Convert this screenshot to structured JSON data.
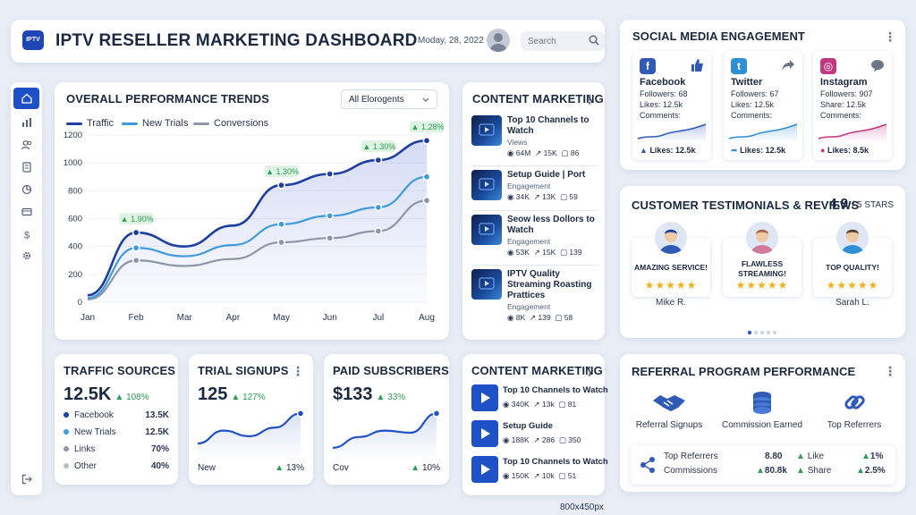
{
  "header": {
    "logo_text": "IPTV",
    "title": "IPTV RESELLER MARKETING DASHBOARD",
    "date": "Moday, 28, 2022",
    "search_placeholder": "Search"
  },
  "sidebar": {
    "items": [
      "home-icon",
      "bar-chart-icon",
      "users-icon",
      "document-icon",
      "pie-chart-icon",
      "card-icon",
      "dollar-icon",
      "gear-icon"
    ],
    "bottom": "logout-icon"
  },
  "performance": {
    "title": "OVERALL PERFORMANCE TRENDS",
    "filter": "All Elorogents",
    "legend": [
      "Traffic",
      "New Trials",
      "Conversions"
    ]
  },
  "chart_data": {
    "type": "line",
    "x": [
      "Jan",
      "Feb",
      "Mar",
      "Apr",
      "May",
      "Jun",
      "Jul",
      "Aug"
    ],
    "yticks": [
      0,
      200,
      400,
      600,
      800,
      1000,
      1200
    ],
    "ylim": [
      0,
      1250
    ],
    "colors": [
      "#1e3f9e",
      "#3f9bdc",
      "#8d97a8"
    ],
    "series": [
      {
        "name": "Traffic",
        "values": [
          50,
          500,
          400,
          550,
          840,
          920,
          1020,
          1160
        ]
      },
      {
        "name": "New Trials",
        "values": [
          30,
          390,
          330,
          410,
          560,
          620,
          680,
          900
        ]
      },
      {
        "name": "Conversions",
        "values": [
          20,
          300,
          260,
          310,
          430,
          460,
          510,
          730
        ]
      }
    ],
    "annotations": [
      {
        "x": "Feb",
        "y": 500,
        "text": "1.90%"
      },
      {
        "x": "May",
        "y": 840,
        "text": "1.30%"
      },
      {
        "x": "Jul",
        "y": 1020,
        "text": "1.30%"
      },
      {
        "x": "Aug",
        "y": 1160,
        "text": "1.28%"
      }
    ]
  },
  "content_top": {
    "title": "CONTENT MARKETING",
    "items": [
      {
        "title": "Top 10 Channels to Watch",
        "sub": "Views",
        "views": "64M",
        "shares": "15K",
        "comments": "86"
      },
      {
        "title": "Setup Guide | Port",
        "sub": "Engagement",
        "views": "34K",
        "shares": "13K",
        "comments": "59"
      },
      {
        "title": "Seow less Dollors to Watch",
        "sub": "Engagement",
        "views": "53K",
        "shares": "15K",
        "comments": "139"
      },
      {
        "title": "IPTV Quality Streaming Roasting Prattices",
        "sub": "Engagement",
        "views": "8K",
        "shares": "139",
        "comments": "58"
      }
    ]
  },
  "social": {
    "title": "SOCIAL MEDIA ENGAGEMENT",
    "cards": [
      {
        "name": "Facebook",
        "l1": "Followers: 68",
        "l2": "Likes: 12.5k",
        "l3": "Comments:",
        "footer": "Likes: 12.5k",
        "color": "#2f5bb7",
        "logo": "f",
        "action": "thumbs-up-icon"
      },
      {
        "name": "Twitter",
        "l1": "Followers: 67",
        "l2": "Likes: 12.5k",
        "l3": "Comments:",
        "footer": "Likes: 12.5k",
        "color": "#2e8fd6",
        "logo": "t",
        "action": "share-icon"
      },
      {
        "name": "Instagram",
        "l1": "Followers: 907",
        "l2": "Share: 12.5k",
        "l3": "Comments:",
        "footer": "Likes: 8.5k",
        "color": "#c2377f",
        "logo": "◎",
        "action": "comment-icon"
      }
    ]
  },
  "testimonials": {
    "title": "CUSTOMER TESTIMONIALS & REVIEWS",
    "rating": "4.9",
    "rating_suffix": "/ 5 STARS",
    "cards": [
      {
        "quote": "AMAZING SERVICE!",
        "name": "Mike R.",
        "stars": "★★★★★"
      },
      {
        "quote": "FLAWLESS STREAMING!",
        "name": "",
        "stars": "★★★★★"
      },
      {
        "quote": "TOP QUALITY!",
        "name": "Sarah L.",
        "stars": "★★★★★"
      }
    ]
  },
  "traffic": {
    "title": "TRAFFIC SOURCES",
    "value": "12.5K",
    "change": "108%",
    "rows": [
      {
        "label": "Facebook",
        "value": "13.5K",
        "color": "#1e3f9e"
      },
      {
        "label": "New Trials",
        "value": "12.5K",
        "color": "#3f9bdc"
      },
      {
        "label": "Links",
        "value": "70%",
        "color": "#8d97a8"
      },
      {
        "label": "Other",
        "value": "40%",
        "color": "#b7bfcc"
      }
    ]
  },
  "trials": {
    "title": "TRIAL SIGNUPS",
    "value": "125",
    "change": "127%",
    "foot_left": "New",
    "foot_right": "13%",
    "trend": [
      0.25,
      0.55,
      0.42,
      0.62,
      0.95
    ]
  },
  "paid": {
    "title": "PAID SUBSCRIBERS",
    "value": "$133",
    "change": "33%",
    "foot_left": "Cov",
    "foot_right": "10%",
    "trend": [
      0.15,
      0.4,
      0.55,
      0.5,
      0.95
    ]
  },
  "content_bottom": {
    "title": "CONTENT MARKETING",
    "items": [
      {
        "title": "Top 10 Channels to Watch",
        "views": "340K",
        "shares": "13k",
        "comments": "81"
      },
      {
        "title": "Setup Guide",
        "views": "188K",
        "shares": "286",
        "comments": "350"
      },
      {
        "title": "Top 10 Channels to Watch",
        "views": "150K",
        "shares": "10k",
        "comments": "51"
      }
    ]
  },
  "referral": {
    "title": "REFERRAL PROGRAM PERFORMANCE",
    "icons": [
      {
        "label": "Referral Signups",
        "icon": "handshake-icon"
      },
      {
        "label": "Commission Earned",
        "icon": "coins-icon"
      },
      {
        "label": "Top Referrers",
        "icon": "link-icon"
      }
    ],
    "r1_label": "Top Referrers",
    "r1_value": "8.80",
    "r1_k": "Like",
    "r1_p": "1%",
    "r2_label": "Commissions",
    "r2_value": "80.8k",
    "r2_k": "Share",
    "r2_p": "2.5%"
  },
  "footnote": "800x450px"
}
